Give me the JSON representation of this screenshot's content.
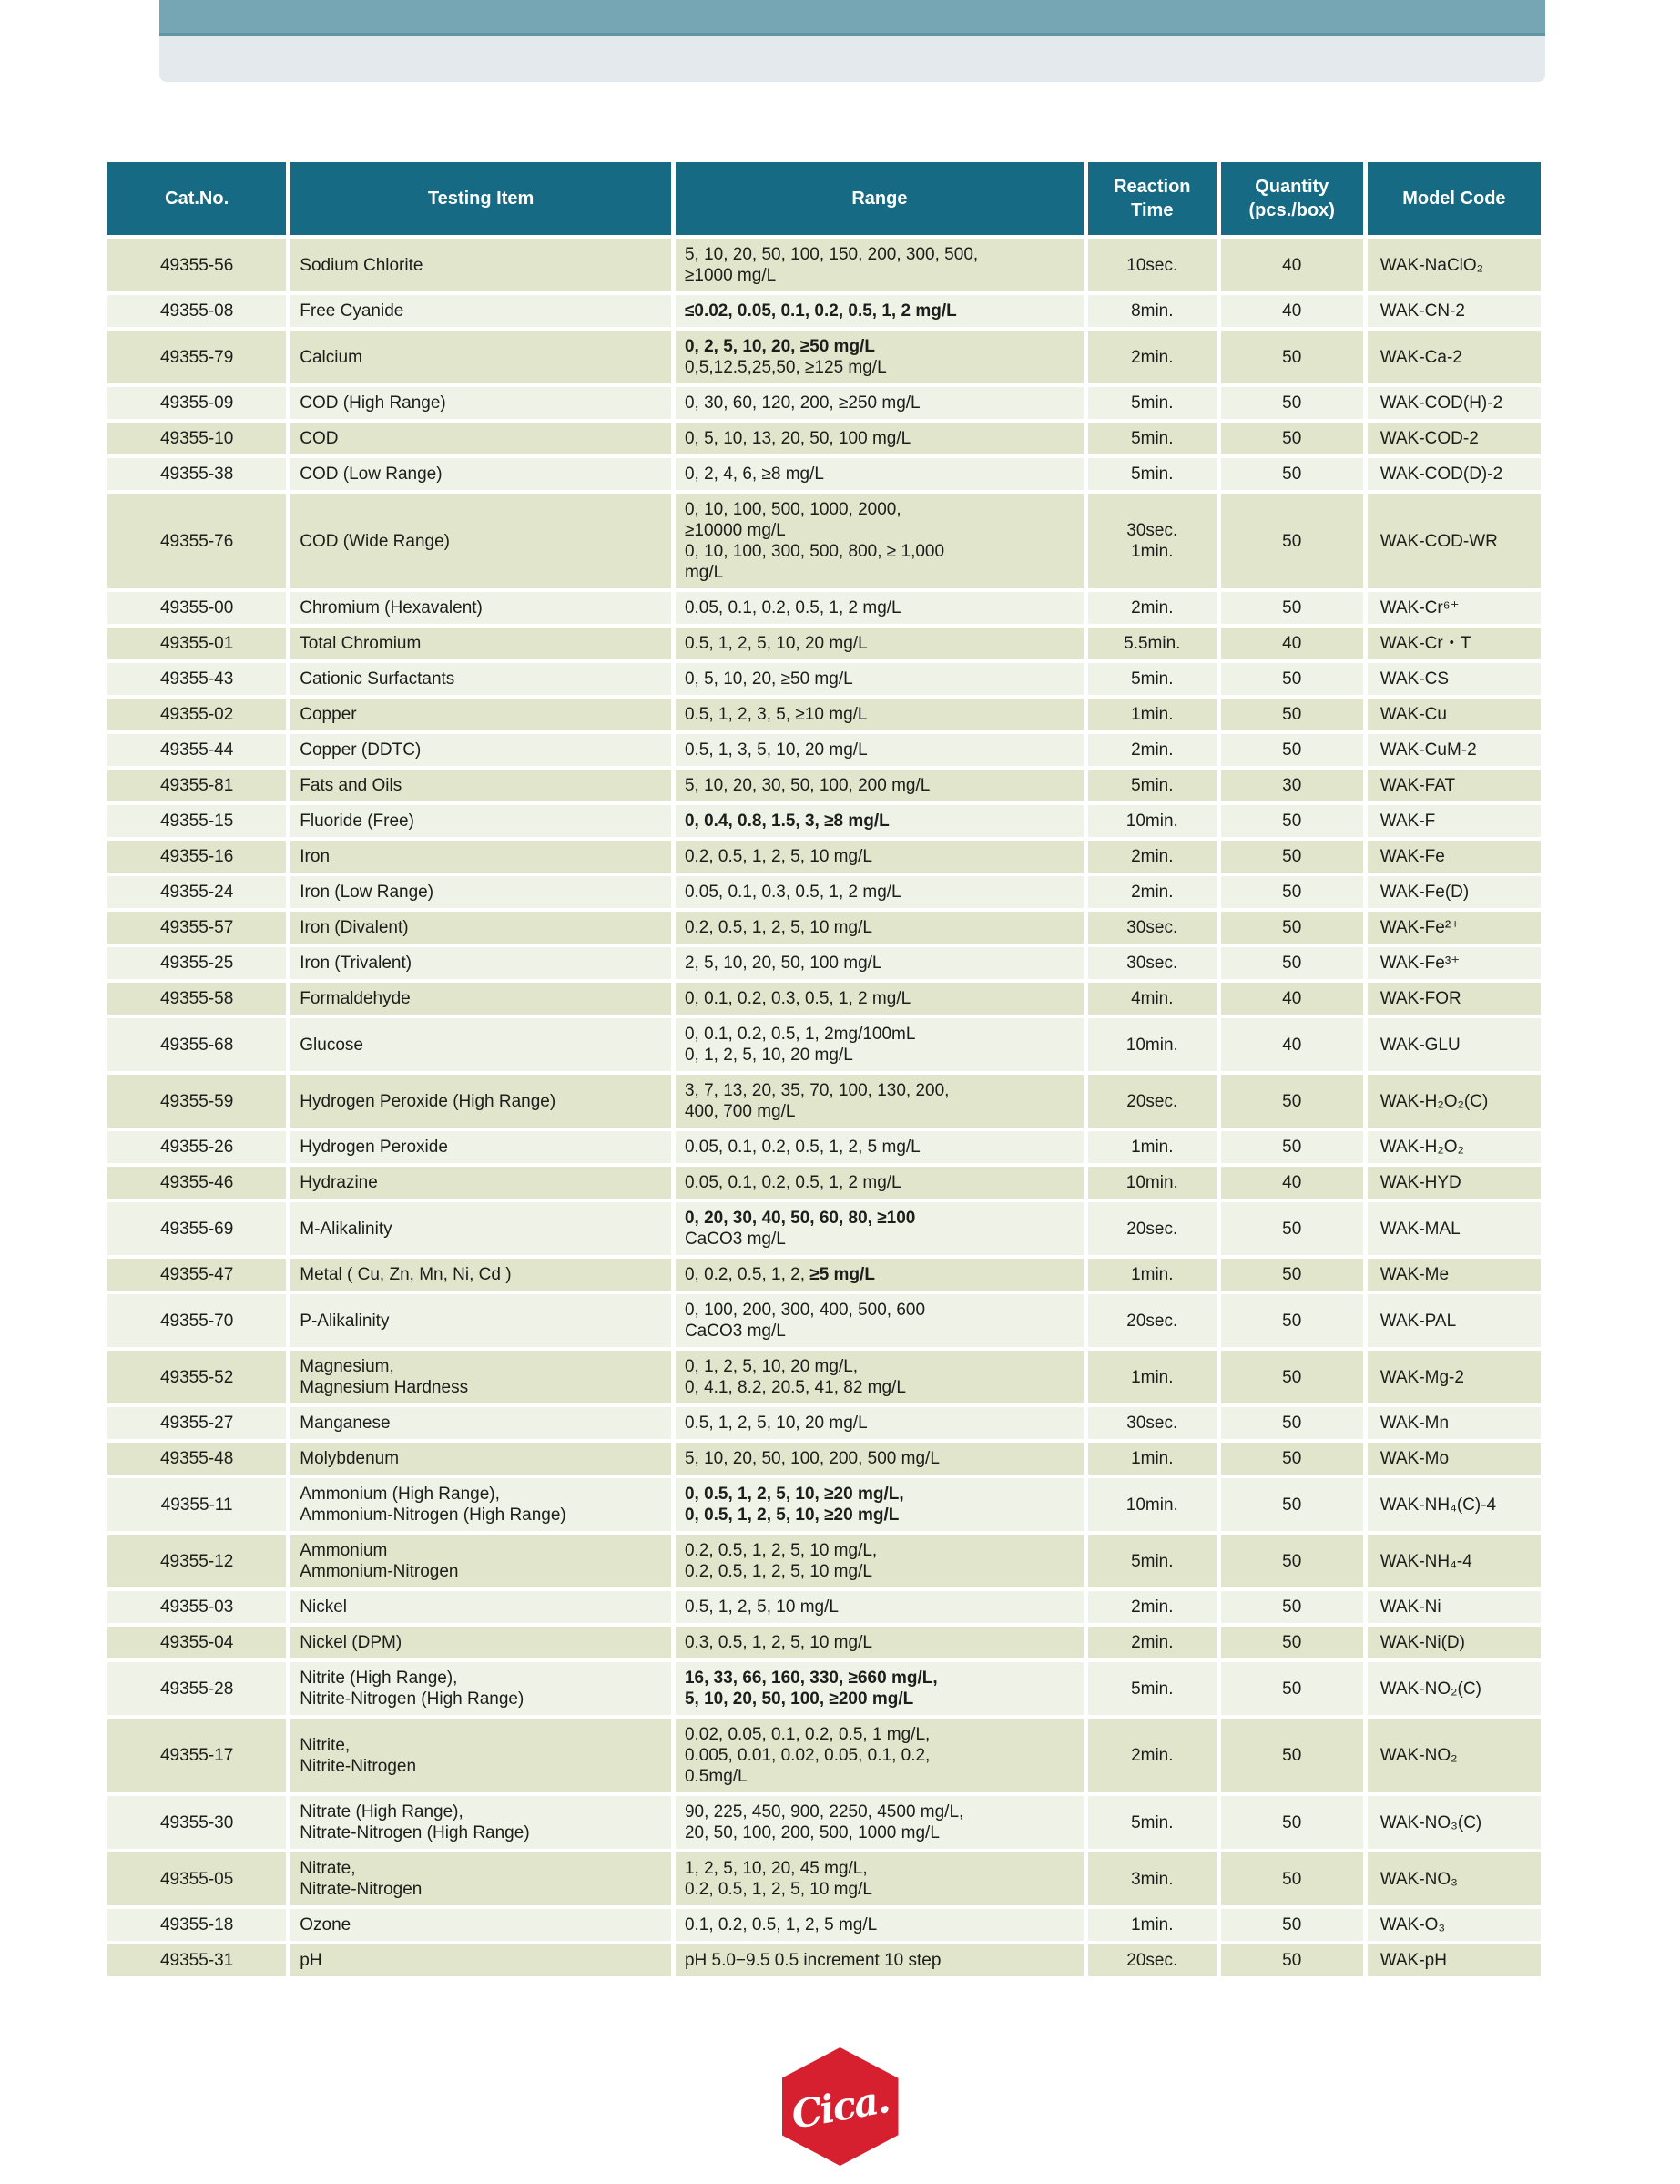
{
  "banner": {
    "top_color": "#76a5b3",
    "line_color": "#5e96a4",
    "sub_color": "#e3e9ed"
  },
  "logo": {
    "text": "Cica.",
    "color": "#d61f2f"
  },
  "table": {
    "header_bg": "#166a83",
    "row_dark": "#e0e5cb",
    "row_light": "#eff2e7",
    "headers": {
      "cat_no": "Cat.No.",
      "testing_item": "Testing Item",
      "range": "Range",
      "reaction_time": "Reaction\nTime",
      "quantity": "Quantity\n(pcs./box)",
      "model_code": "Model Code"
    },
    "rows": [
      {
        "cat": "49355-56",
        "item": [
          "Sodium Chlorite"
        ],
        "range": [
          [
            {
              "t": "5, 10, 20, 50, 100, 150, 200, 300, 500,",
              "b": 0
            }
          ],
          [
            {
              "t": "≥1000 mg/L",
              "b": 0
            }
          ]
        ],
        "time": [
          "10sec."
        ],
        "qty": "40",
        "model": "WAK-NaClO₂"
      },
      {
        "cat": "49355-08",
        "item": [
          "Free Cyanide"
        ],
        "range": [
          [
            {
              "t": "≤0.02, 0.05, 0.1, 0.2, 0.5, 1, 2 mg/L",
              "b": 1
            }
          ]
        ],
        "time": [
          "8min."
        ],
        "qty": "40",
        "model": "WAK-CN-2"
      },
      {
        "cat": "49355-79",
        "item": [
          "Calcium"
        ],
        "range": [
          [
            {
              "t": "0, 2, 5, 10, 20, ≥50 mg/L",
              "b": 1
            }
          ],
          [
            {
              "t": "0,5,12.5,25,50, ≥125 mg/L",
              "b": 0
            }
          ]
        ],
        "time": [
          "2min."
        ],
        "qty": "50",
        "model": "WAK-Ca-2"
      },
      {
        "cat": "49355-09",
        "item": [
          "COD (High Range)"
        ],
        "range": [
          [
            {
              "t": "0, 30, 60, 120, 200, ≥250 mg/L",
              "b": 0
            }
          ]
        ],
        "time": [
          "5min."
        ],
        "qty": "50",
        "model": "WAK-COD(H)-2"
      },
      {
        "cat": "49355-10",
        "item": [
          "COD"
        ],
        "range": [
          [
            {
              "t": "0, 5, 10, 13, 20, 50, 100 mg/L",
              "b": 0
            }
          ]
        ],
        "time": [
          "5min."
        ],
        "qty": "50",
        "model": "WAK-COD-2"
      },
      {
        "cat": "49355-38",
        "item": [
          "COD (Low Range)"
        ],
        "range": [
          [
            {
              "t": "0, 2, 4, 6, ≥8 mg/L",
              "b": 0
            }
          ]
        ],
        "time": [
          "5min."
        ],
        "qty": "50",
        "model": "WAK-COD(D)-2"
      },
      {
        "cat": "49355-76",
        "item": [
          "COD (Wide Range)"
        ],
        "range": [
          [
            {
              "t": "0, 10, 100, 500, 1000, 2000,",
              "b": 0
            }
          ],
          [
            {
              "t": "≥10000 mg/L",
              "b": 0
            }
          ],
          [
            {
              "t": "0, 10, 100, 300, 500, 800, ≥ 1,000",
              "b": 0
            }
          ],
          [
            {
              "t": "mg/L",
              "b": 0
            }
          ]
        ],
        "time": [
          "30sec.",
          "1min."
        ],
        "qty": "50",
        "model": "WAK-COD-WR"
      },
      {
        "cat": "49355-00",
        "item": [
          "Chromium (Hexavalent)"
        ],
        "range": [
          [
            {
              "t": "0.05, 0.1, 0.2, 0.5, 1, 2 mg/L",
              "b": 0
            }
          ]
        ],
        "time": [
          "2min."
        ],
        "qty": "50",
        "model": "WAK-Cr⁶⁺"
      },
      {
        "cat": "49355-01",
        "item": [
          "Total Chromium"
        ],
        "range": [
          [
            {
              "t": "0.5, 1, 2, 5, 10, 20 mg/L",
              "b": 0
            }
          ]
        ],
        "time": [
          "5.5min."
        ],
        "qty": "40",
        "model": "WAK-Cr・T"
      },
      {
        "cat": "49355-43",
        "item": [
          "Cationic Surfactants"
        ],
        "range": [
          [
            {
              "t": "0, 5, 10, 20, ≥50 mg/L",
              "b": 0
            }
          ]
        ],
        "time": [
          "5min."
        ],
        "qty": "50",
        "model": "WAK-CS"
      },
      {
        "cat": "49355-02",
        "item": [
          "Copper"
        ],
        "range": [
          [
            {
              "t": "0.5, 1, 2, 3, 5, ≥10 mg/L",
              "b": 0
            }
          ]
        ],
        "time": [
          "1min."
        ],
        "qty": "50",
        "model": "WAK-Cu"
      },
      {
        "cat": "49355-44",
        "item": [
          "Copper (DDTC)"
        ],
        "range": [
          [
            {
              "t": "0.5, 1, 3, 5, 10, 20 mg/L",
              "b": 0
            }
          ]
        ],
        "time": [
          "2min."
        ],
        "qty": "50",
        "model": "WAK-CuM-2"
      },
      {
        "cat": "49355-81",
        "item": [
          "Fats and Oils"
        ],
        "range": [
          [
            {
              "t": "5, 10, 20, 30, 50, 100, 200 mg/L",
              "b": 0
            }
          ]
        ],
        "time": [
          "5min."
        ],
        "qty": "30",
        "model": "WAK-FAT"
      },
      {
        "cat": "49355-15",
        "item": [
          "Fluoride (Free)"
        ],
        "range": [
          [
            {
              "t": "0, 0.4, 0.8, 1.5, 3, ≥8 mg/L",
              "b": 1
            }
          ]
        ],
        "time": [
          "10min."
        ],
        "qty": "50",
        "model": "WAK-F"
      },
      {
        "cat": "49355-16",
        "item": [
          "Iron"
        ],
        "range": [
          [
            {
              "t": "0.2, 0.5, 1, 2, 5, 10 mg/L",
              "b": 0
            }
          ]
        ],
        "time": [
          "2min."
        ],
        "qty": "50",
        "model": "WAK-Fe"
      },
      {
        "cat": "49355-24",
        "item": [
          "Iron (Low Range)"
        ],
        "range": [
          [
            {
              "t": "0.05, 0.1, 0.3, 0.5, 1, 2 mg/L",
              "b": 0
            }
          ]
        ],
        "time": [
          "2min."
        ],
        "qty": "50",
        "model": "WAK-Fe(D)"
      },
      {
        "cat": "49355-57",
        "item": [
          "Iron (Divalent)"
        ],
        "range": [
          [
            {
              "t": "0.2, 0.5, 1, 2, 5, 10 mg/L",
              "b": 0
            }
          ]
        ],
        "time": [
          "30sec."
        ],
        "qty": "50",
        "model": "WAK-Fe²⁺"
      },
      {
        "cat": "49355-25",
        "item": [
          "Iron (Trivalent)"
        ],
        "range": [
          [
            {
              "t": "2, 5, 10, 20, 50, 100 mg/L",
              "b": 0
            }
          ]
        ],
        "time": [
          "30sec."
        ],
        "qty": "50",
        "model": "WAK-Fe³⁺"
      },
      {
        "cat": "49355-58",
        "item": [
          "Formaldehyde"
        ],
        "range": [
          [
            {
              "t": "0, 0.1, 0.2, 0.3, 0.5, 1, 2 mg/L",
              "b": 0
            }
          ]
        ],
        "time": [
          "4min."
        ],
        "qty": "40",
        "model": "WAK-FOR"
      },
      {
        "cat": "49355-68",
        "item": [
          "Glucose"
        ],
        "range": [
          [
            {
              "t": "0, 0.1, 0.2, 0.5, 1, 2mg/100mL",
              "b": 0
            }
          ],
          [
            {
              "t": "0, 1, 2, 5, 10, 20 mg/L",
              "b": 0
            }
          ]
        ],
        "time": [
          "10min."
        ],
        "qty": "40",
        "model": "WAK-GLU"
      },
      {
        "cat": "49355-59",
        "item": [
          "Hydrogen Peroxide (High Range)"
        ],
        "range": [
          [
            {
              "t": "3, 7, 13, 20, 35, 70, 100, 130, 200,",
              "b": 0
            }
          ],
          [
            {
              "t": "400, 700 mg/L",
              "b": 0
            }
          ]
        ],
        "time": [
          "20sec."
        ],
        "qty": "50",
        "model": "WAK-H₂O₂(C)"
      },
      {
        "cat": "49355-26",
        "item": [
          "Hydrogen Peroxide"
        ],
        "range": [
          [
            {
              "t": "0.05, 0.1, 0.2, 0.5, 1, 2, 5 mg/L",
              "b": 0
            }
          ]
        ],
        "time": [
          "1min."
        ],
        "qty": "50",
        "model": "WAK-H₂O₂"
      },
      {
        "cat": "49355-46",
        "item": [
          "Hydrazine"
        ],
        "range": [
          [
            {
              "t": "0.05, 0.1, 0.2, 0.5, 1, 2 mg/L",
              "b": 0
            }
          ]
        ],
        "time": [
          "10min."
        ],
        "qty": "40",
        "model": "WAK-HYD"
      },
      {
        "cat": "49355-69",
        "item": [
          "M-Alikalinity"
        ],
        "range": [
          [
            {
              "t": "0, 20, 30, 40, 50, 60, 80, ≥100",
              "b": 1
            }
          ],
          [
            {
              "t": "CaCO3 mg/L",
              "b": 0
            }
          ]
        ],
        "time": [
          "20sec."
        ],
        "qty": "50",
        "model": "WAK-MAL"
      },
      {
        "cat": "49355-47",
        "item": [
          "Metal ( Cu, Zn, Mn, Ni, Cd )"
        ],
        "range": [
          [
            {
              "t": "0, 0.2, 0.5, 1, 2, ",
              "b": 0
            },
            {
              "t": "≥5 mg/L",
              "b": 1
            }
          ]
        ],
        "time": [
          "1min."
        ],
        "qty": "50",
        "model": "WAK-Me"
      },
      {
        "cat": "49355-70",
        "item": [
          "P-Alikalinity"
        ],
        "range": [
          [
            {
              "t": "0, 100, 200, 300, 400, 500, 600",
              "b": 0
            }
          ],
          [
            {
              "t": "CaCO3 mg/L",
              "b": 0
            }
          ]
        ],
        "time": [
          "20sec."
        ],
        "qty": "50",
        "model": "WAK-PAL"
      },
      {
        "cat": "49355-52",
        "item": [
          "Magnesium,",
          "Magnesium Hardness"
        ],
        "range": [
          [
            {
              "t": "0, 1, 2, 5, 10, 20 mg/L,",
              "b": 0
            }
          ],
          [
            {
              "t": "0, 4.1, 8.2, 20.5, 41, 82 mg/L",
              "b": 0
            }
          ]
        ],
        "time": [
          "1min."
        ],
        "qty": "50",
        "model": "WAK-Mg-2"
      },
      {
        "cat": "49355-27",
        "item": [
          "Manganese"
        ],
        "range": [
          [
            {
              "t": "0.5, 1, 2, 5, 10, 20 mg/L",
              "b": 0
            }
          ]
        ],
        "time": [
          "30sec."
        ],
        "qty": "50",
        "model": "WAK-Mn"
      },
      {
        "cat": "49355-48",
        "item": [
          "Molybdenum"
        ],
        "range": [
          [
            {
              "t": "5, 10, 20, 50, 100, 200, 500 mg/L",
              "b": 0
            }
          ]
        ],
        "time": [
          "1min."
        ],
        "qty": "50",
        "model": "WAK-Mo"
      },
      {
        "cat": "49355-11",
        "item": [
          "Ammonium (High Range),",
          "Ammonium-Nitrogen (High Range)"
        ],
        "range": [
          [
            {
              "t": "0, 0.5, 1, 2, 5, 10, ≥20 mg/L,",
              "b": 1
            }
          ],
          [
            {
              "t": "0, 0.5, 1, 2, 5, 10, ≥20 mg/L",
              "b": 1
            }
          ]
        ],
        "time": [
          "10min."
        ],
        "qty": "50",
        "model": "WAK-NH₄(C)-4"
      },
      {
        "cat": "49355-12",
        "item": [
          "Ammonium",
          "Ammonium-Nitrogen"
        ],
        "range": [
          [
            {
              "t": "0.2, 0.5, 1, 2, 5, 10 mg/L,",
              "b": 0
            }
          ],
          [
            {
              "t": "0.2, 0.5, 1, 2, 5, 10 mg/L",
              "b": 0
            }
          ]
        ],
        "time": [
          "5min."
        ],
        "qty": "50",
        "model": "WAK-NH₄-4"
      },
      {
        "cat": "49355-03",
        "item": [
          "Nickel"
        ],
        "range": [
          [
            {
              "t": "0.5, 1, 2, 5, 10 mg/L",
              "b": 0
            }
          ]
        ],
        "time": [
          "2min."
        ],
        "qty": "50",
        "model": "WAK-Ni"
      },
      {
        "cat": "49355-04",
        "item": [
          "Nickel (DPM)"
        ],
        "range": [
          [
            {
              "t": "0.3, 0.5, 1, 2, 5, 10 mg/L",
              "b": 0
            }
          ]
        ],
        "time": [
          "2min."
        ],
        "qty": "50",
        "model": "WAK-Ni(D)"
      },
      {
        "cat": "49355-28",
        "item": [
          "Nitrite (High Range),",
          "Nitrite-Nitrogen (High Range)"
        ],
        "range": [
          [
            {
              "t": "16, 33, 66, 160, 330, ≥660 mg/L,",
              "b": 1
            }
          ],
          [
            {
              "t": "5, 10, 20, 50, 100, ≥200 mg/L",
              "b": 1
            }
          ]
        ],
        "time": [
          "5min."
        ],
        "qty": "50",
        "model": "WAK-NO₂(C)"
      },
      {
        "cat": "49355-17",
        "item": [
          "Nitrite,",
          "Nitrite-Nitrogen"
        ],
        "range": [
          [
            {
              "t": "0.02, 0.05, 0.1, 0.2, 0.5, 1 mg/L,",
              "b": 0
            }
          ],
          [
            {
              "t": "0.005, 0.01, 0.02, 0.05, 0.1, 0.2,",
              "b": 0
            }
          ],
          [
            {
              "t": "0.5mg/L",
              "b": 0
            }
          ]
        ],
        "time": [
          "2min."
        ],
        "qty": "50",
        "model": "WAK-NO₂"
      },
      {
        "cat": "49355-30",
        "item": [
          "Nitrate (High Range),",
          "Nitrate-Nitrogen (High Range)"
        ],
        "range": [
          [
            {
              "t": "90, 225, 450, 900, 2250, 4500 mg/L,",
              "b": 0
            }
          ],
          [
            {
              "t": "20, 50, 100, 200, 500, 1000 mg/L",
              "b": 0
            }
          ]
        ],
        "time": [
          "5min."
        ],
        "qty": "50",
        "model": "WAK-NO₃(C)"
      },
      {
        "cat": "49355-05",
        "item": [
          "Nitrate,",
          "Nitrate-Nitrogen"
        ],
        "range": [
          [
            {
              "t": "1, 2, 5, 10, 20, 45 mg/L,",
              "b": 0
            }
          ],
          [
            {
              "t": "0.2, 0.5, 1, 2, 5, 10 mg/L",
              "b": 0
            }
          ]
        ],
        "time": [
          "3min."
        ],
        "qty": "50",
        "model": "WAK-NO₃"
      },
      {
        "cat": "49355-18",
        "item": [
          "Ozone"
        ],
        "range": [
          [
            {
              "t": "0.1, 0.2, 0.5, 1, 2, 5 mg/L",
              "b": 0
            }
          ]
        ],
        "time": [
          "1min."
        ],
        "qty": "50",
        "model": "WAK-O₃"
      },
      {
        "cat": "49355-31",
        "item": [
          "pH"
        ],
        "range": [
          [
            {
              "t": "pH 5.0−9.5  0.5 increment 10 step",
              "b": 0
            }
          ]
        ],
        "time": [
          "20sec."
        ],
        "qty": "50",
        "model": "WAK-pH"
      }
    ]
  }
}
